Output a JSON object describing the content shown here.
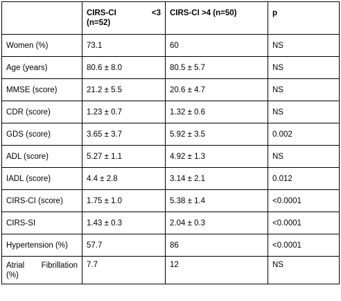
{
  "table": {
    "header": {
      "col0": "",
      "col1_line1": "CIRS-CI <3",
      "col1_line2": "(n=52)",
      "col2": "CIRS-CI >4 (n=50)",
      "col3": "p"
    },
    "rows": [
      {
        "label": "Women (%)",
        "low": "73.1",
        "high": "60",
        "p": "NS"
      },
      {
        "label": "Age (years)",
        "low": "80.6 ± 8.0",
        "high": "80.5 ± 5.7",
        "p": "NS"
      },
      {
        "label": "MMSE (score)",
        "low": "21.2 ± 5.5",
        "high": "20.6 ± 4.7",
        "p": "NS"
      },
      {
        "label": "CDR (score)",
        "low": "1.23 ± 0.7",
        "high": "1.32 ± 0.6",
        "p": "NS"
      },
      {
        "label": "GDS (score)",
        "low": "3.65 ± 3.7",
        "high": "5.92 ± 3.5",
        "p": "0.002"
      },
      {
        "label": "ADL (score)",
        "low": "5.27 ± 1.1",
        "high": "4.92 ± 1.3",
        "p": "NS"
      },
      {
        "label": "IADL (score)",
        "low": "4.4 ± 2.8",
        "high": "3.14 ± 2.1",
        "p": "0.012"
      },
      {
        "label": "CIRS-CI (score)",
        "low": "1.75 ± 1.0",
        "high": "5.38 ± 1.4",
        "p": "<0.0001"
      },
      {
        "label": "CIRS-SI",
        "low": "1.43 ± 0.3",
        "high": "2.04 ± 0.3",
        "p": "<0.0001"
      },
      {
        "label": "Hypertension (%)",
        "low": "57.7",
        "high": "86",
        "p": "<0.0001"
      }
    ],
    "last_row": {
      "label_line1": "Atrial Fibrillation",
      "label_line2": "(%)",
      "low": "7.7",
      "high": "12",
      "p": "NS"
    }
  }
}
